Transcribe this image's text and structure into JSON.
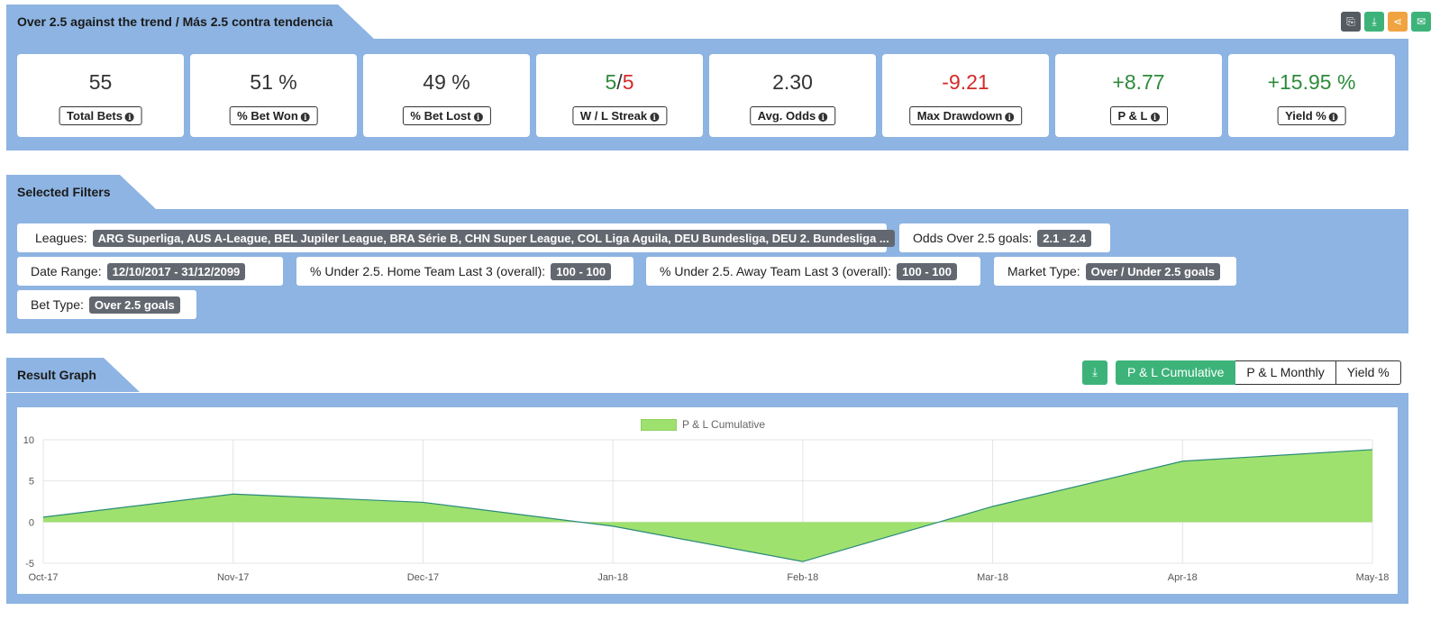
{
  "strategy": {
    "title": "Over 2.5 against the trend / Más 2.5 contra tendencia",
    "icons": [
      "copy-icon",
      "download-icon",
      "share-icon",
      "envelope-icon"
    ]
  },
  "stats": [
    {
      "key": "total-bets",
      "value": "55",
      "label": "Total Bets"
    },
    {
      "key": "bet-won",
      "value": "51 %",
      "label": "% Bet Won"
    },
    {
      "key": "bet-lost",
      "value": "49 %",
      "label": "% Bet Lost"
    },
    {
      "key": "wl-streak",
      "value_w": "5",
      "value_sep": "/",
      "value_l": "5",
      "label": "W / L Streak"
    },
    {
      "key": "avg-odds",
      "value": "2.30",
      "label": "Avg. Odds"
    },
    {
      "key": "max-drawdown",
      "value": "-9.21",
      "label": "Max Drawdown"
    },
    {
      "key": "pl",
      "value": "+8.77",
      "label": "P & L"
    },
    {
      "key": "yield",
      "value": "+15.95 %",
      "label": "Yield %"
    }
  ],
  "filters": {
    "title": "Selected Filters",
    "items": [
      {
        "label": "Leagues:",
        "value": "ARG Superliga, AUS A-League, BEL Jupiler League, BRA Série B, CHN Super League, COL Liga Aguila, DEU Bundesliga, DEU 2. Bundesliga ..."
      },
      {
        "label": "Odds Over 2.5 goals:",
        "value": "2.1 - 2.4"
      },
      {
        "label": "Date Range:",
        "value": "12/10/2017 - 31/12/2099"
      },
      {
        "label": "% Under 2.5. Home Team Last 3 (overall):",
        "value": "100 - 100"
      },
      {
        "label": "% Under 2.5. Away Team Last 3 (overall):",
        "value": "100 - 100"
      },
      {
        "label": "Market Type:",
        "value": "Over / Under 2.5 goals"
      },
      {
        "label": "Bet Type:",
        "value": "Over 2.5 goals"
      }
    ]
  },
  "graph": {
    "title": "Result Graph",
    "toggles": [
      "P & L Cumulative",
      "P & L Monthly",
      "Yield %"
    ],
    "active_toggle": "P & L Cumulative"
  },
  "colors": {
    "panel": "#8db4e2",
    "fill": "#9ee16e",
    "line": "#2a8a7a",
    "accent_green": "#3db37a"
  },
  "chart_data": {
    "type": "area",
    "x": [
      "Oct-17",
      "Nov-17",
      "Dec-17",
      "Jan-18",
      "Feb-18",
      "Mar-18",
      "Apr-18",
      "May-18"
    ],
    "series": [
      {
        "name": "P & L Cumulative",
        "values": [
          0.6,
          3.4,
          2.4,
          -0.5,
          -4.8,
          1.9,
          7.4,
          8.8
        ]
      }
    ],
    "ylim": [
      -5,
      10
    ],
    "yticks": [
      -5,
      0,
      5,
      10
    ],
    "grid": true,
    "legend": "top-center"
  }
}
